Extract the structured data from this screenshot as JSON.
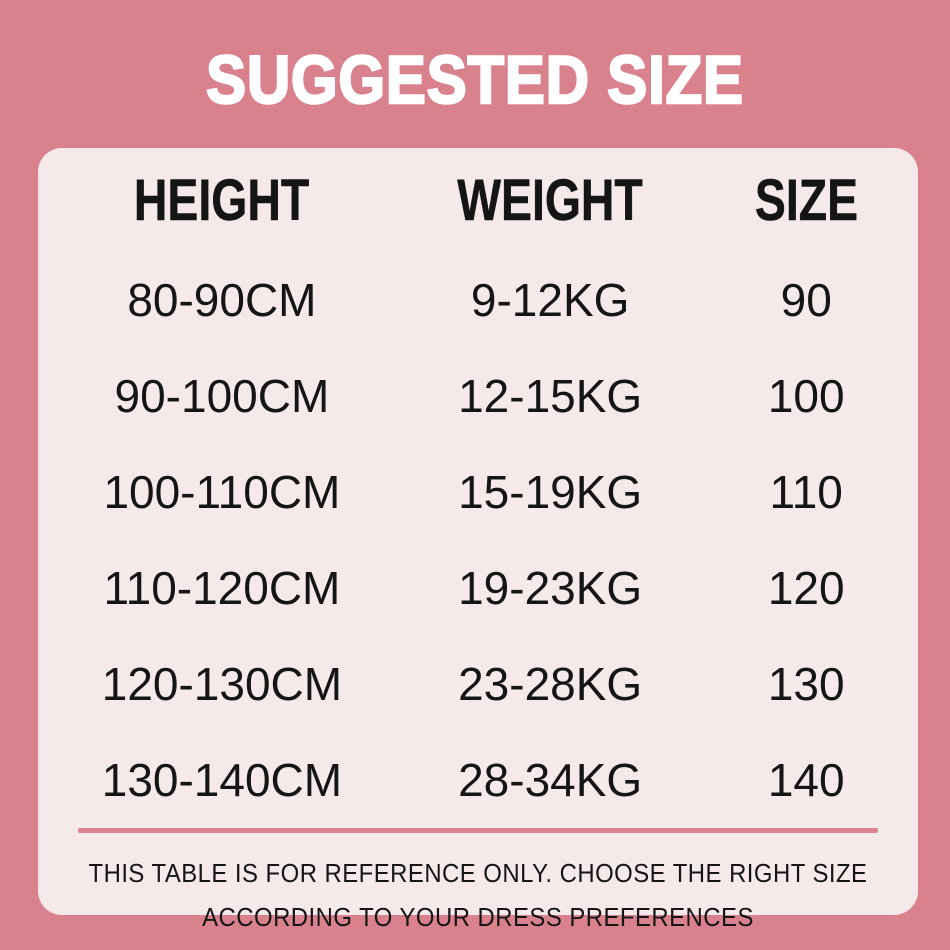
{
  "chart_data": {
    "type": "table",
    "title": "SUGGESTED SIZE",
    "columns": [
      "HEIGHT",
      "WEIGHT",
      "SIZE"
    ],
    "rows": [
      [
        "80-90CM",
        "9-12KG",
        "90"
      ],
      [
        "90-100CM",
        "12-15KG",
        "100"
      ],
      [
        "100-110CM",
        "15-19KG",
        "110"
      ],
      [
        "110-120CM",
        "19-23KG",
        "120"
      ],
      [
        "120-130CM",
        "23-28KG",
        "130"
      ],
      [
        "130-140CM",
        "28-34KG",
        "140"
      ]
    ],
    "footnote": [
      "THIS TABLE IS FOR REFERENCE ONLY. CHOOSE THE RIGHT SIZE",
      "ACCORDING TO YOUR DRESS PREFERENCES"
    ]
  },
  "colors": {
    "background": "#d9828e",
    "panel": "#f5e9ea",
    "divider": "#dc8490",
    "title_text": "#ffffff",
    "body_text": "#151515"
  }
}
